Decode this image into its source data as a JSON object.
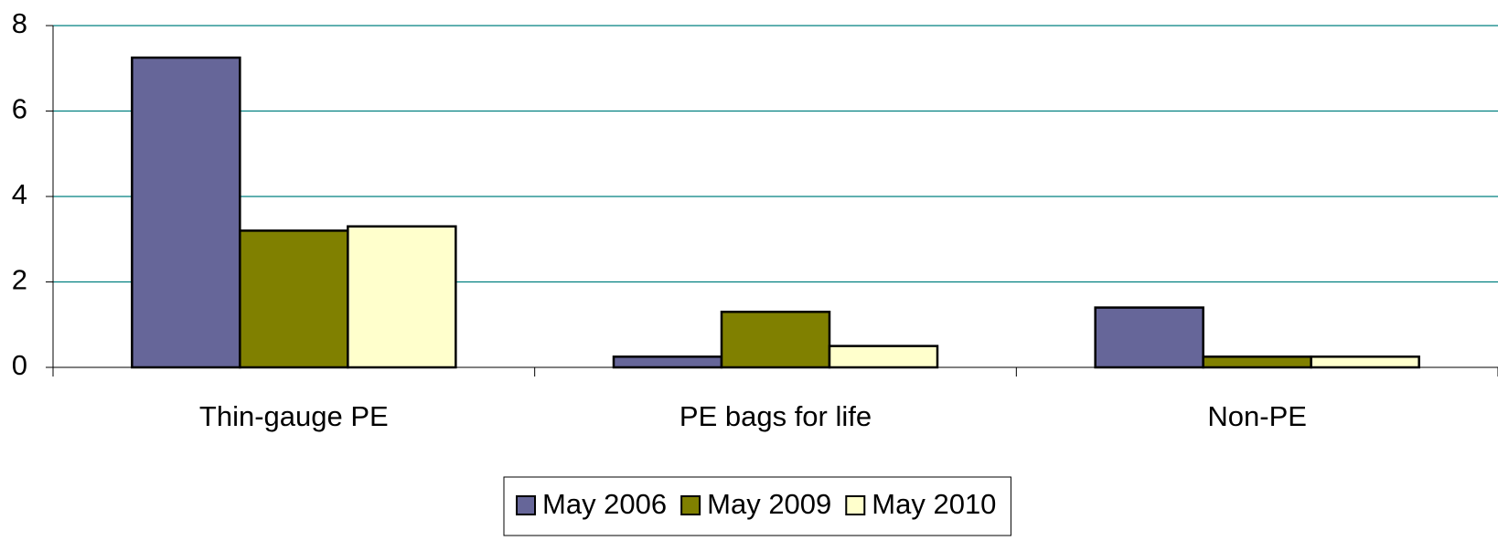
{
  "chart_data": {
    "type": "bar",
    "categories": [
      "Thin-gauge PE",
      "PE bags for life",
      "Non-PE"
    ],
    "series": [
      {
        "name": "May 2006",
        "color": "#666699",
        "values": [
          7.25,
          0.25,
          1.4
        ]
      },
      {
        "name": "May 2009",
        "color": "#808000",
        "values": [
          3.2,
          1.3,
          0.25
        ]
      },
      {
        "name": "May 2010",
        "color": "#ffffcc",
        "values": [
          3.3,
          0.5,
          0.25
        ]
      }
    ],
    "ylim": [
      0,
      8
    ],
    "yticks": [
      0,
      2,
      4,
      6,
      8
    ],
    "grid": true,
    "legend": "bottom"
  }
}
